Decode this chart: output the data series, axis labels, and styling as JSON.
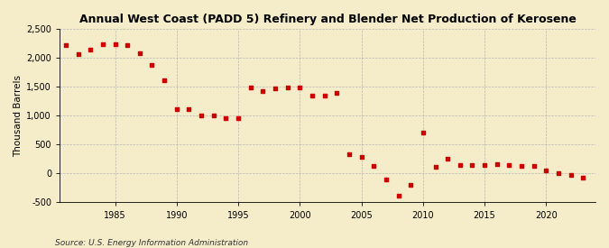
{
  "title": "Annual West Coast (PADD 5) Refinery and Blender Net Production of Kerosene",
  "ylabel": "Thousand Barrels",
  "source": "Source: U.S. Energy Information Administration",
  "background_color": "#f5ecca",
  "marker_color": "#cc0000",
  "years": [
    1981,
    1982,
    1983,
    1984,
    1985,
    1986,
    1987,
    1988,
    1989,
    1990,
    1991,
    1992,
    1993,
    1994,
    1995,
    1996,
    1997,
    1998,
    1999,
    2000,
    2001,
    2002,
    2003,
    2004,
    2005,
    2006,
    2007,
    2008,
    2009,
    2010,
    2011,
    2012,
    2013,
    2014,
    2015,
    2016,
    2017,
    2018,
    2019,
    2020,
    2021,
    2022,
    2023
  ],
  "values": [
    2220,
    2060,
    2140,
    2240,
    2230,
    2220,
    2080,
    1870,
    1610,
    1110,
    1115,
    1000,
    1000,
    960,
    950,
    1480,
    1420,
    1470,
    1490,
    1480,
    1350,
    1340,
    1390,
    330,
    280,
    130,
    -110,
    -390,
    -200,
    700,
    110,
    250,
    150,
    150,
    150,
    155,
    145,
    130,
    130,
    55,
    10,
    -25,
    -70
  ],
  "ylim": [
    -500,
    2500
  ],
  "yticks": [
    -500,
    0,
    500,
    1000,
    1500,
    2000,
    2500
  ],
  "ytick_labels": [
    "-500",
    "0",
    "500",
    "1,000",
    "1,500",
    "2,000",
    "2,500"
  ],
  "xlim": [
    1980.5,
    2024
  ],
  "xticks": [
    1985,
    1990,
    1995,
    2000,
    2005,
    2010,
    2015,
    2020
  ]
}
